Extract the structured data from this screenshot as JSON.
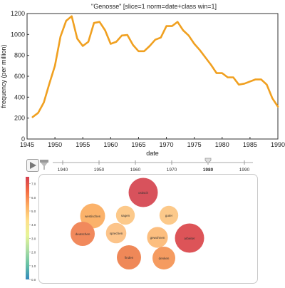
{
  "chart_data": {
    "type": "line",
    "title": "\"Genosse\" [slice=1 norm=date+class win=1]",
    "xlabel": "date",
    "ylabel": "frequency (per million)",
    "xlim": [
      1945,
      1990
    ],
    "ylim": [
      0,
      1200
    ],
    "x_ticks": [
      1945,
      1950,
      1955,
      1960,
      1965,
      1970,
      1975,
      1980,
      1985,
      1990
    ],
    "y_ticks": [
      0,
      200,
      400,
      600,
      800,
      1000,
      1200
    ],
    "grid": false,
    "series": [
      {
        "color": "#f0a020",
        "x": [
          1946,
          1947,
          1948,
          1949,
          1950,
          1951,
          1952,
          1953,
          1954,
          1955,
          1956,
          1957,
          1958,
          1959,
          1960,
          1961,
          1962,
          1963,
          1964,
          1965,
          1966,
          1967,
          1968,
          1969,
          1970,
          1971,
          1972,
          1973,
          1974,
          1975,
          1976,
          1977,
          1978,
          1979,
          1980,
          1981,
          1982,
          1983,
          1984,
          1985,
          1986,
          1987,
          1988,
          1989,
          1990
        ],
        "y": [
          210,
          250,
          350,
          530,
          700,
          980,
          1130,
          1175,
          960,
          890,
          930,
          1110,
          1120,
          1040,
          910,
          930,
          990,
          995,
          900,
          840,
          840,
          890,
          950,
          970,
          1080,
          1080,
          1120,
          1040,
          990,
          910,
          850,
          780,
          710,
          630,
          630,
          590,
          590,
          520,
          530,
          550,
          570,
          570,
          520,
          390,
          310
        ]
      }
    ]
  },
  "controls": {
    "play_icon": "play-icon",
    "filter_icon": "funnel-icon",
    "timeline": {
      "ticks": [
        "1940",
        "1950",
        "1960",
        "1970",
        "1980",
        "1990"
      ],
      "range": [
        1940,
        1990
      ],
      "selected": "1980",
      "selected_value": 1980
    }
  },
  "legend": {
    "ticks": [
      "0.0",
      "1.0",
      "2.0",
      "3.0",
      "4.0",
      "5.0",
      "6.0",
      "7.0"
    ],
    "range": [
      0,
      7.5
    ],
    "colors": [
      "#d53e4f",
      "#f46d43",
      "#fdae61",
      "#fee08b",
      "#e6f598",
      "#abdda4",
      "#66c2a5",
      "#3288bd"
    ]
  },
  "bubbles": [
    {
      "label": "ostisch",
      "value": 7.0,
      "color": "#d8525c"
    },
    {
      "label": "westisches",
      "value": 4.2,
      "color": "#fbb26a"
    },
    {
      "label": "sagen",
      "value": 3.6,
      "color": "#fcc98a"
    },
    {
      "label": "guter",
      "value": 3.6,
      "color": "#fcc98a"
    },
    {
      "label": "deutschen",
      "value": 5.2,
      "color": "#f1895c"
    },
    {
      "label": "sprechen",
      "value": 3.8,
      "color": "#fcc48a"
    },
    {
      "label": "gewohnen",
      "value": 3.9,
      "color": "#fcbe7f"
    },
    {
      "label": "arbeiter",
      "value": 7.1,
      "color": "#dd5458"
    },
    {
      "label": "finden",
      "value": 5.4,
      "color": "#ef8858"
    },
    {
      "label": "denken",
      "value": 4.8,
      "color": "#f59b60"
    }
  ]
}
